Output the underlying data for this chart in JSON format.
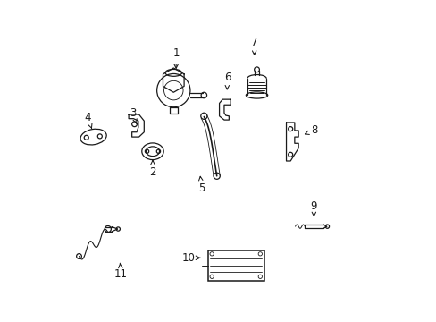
{
  "bg_color": "#ffffff",
  "line_color": "#1a1a1a",
  "figsize": [
    4.89,
    3.6
  ],
  "dpi": 100,
  "label_fs": 8.5,
  "parts_labels": {
    "1": [
      0.368,
      0.835,
      0.368,
      0.778
    ],
    "2": [
      0.295,
      0.465,
      0.295,
      0.505
    ],
    "3": [
      0.232,
      0.65,
      0.245,
      0.615
    ],
    "4": [
      0.092,
      0.635,
      0.105,
      0.6
    ],
    "5": [
      0.448,
      0.415,
      0.443,
      0.455
    ],
    "6": [
      0.528,
      0.76,
      0.527,
      0.72
    ],
    "7": [
      0.612,
      0.87,
      0.612,
      0.82
    ],
    "8": [
      0.8,
      0.595,
      0.76,
      0.58
    ],
    "9": [
      0.798,
      0.358,
      0.798,
      0.325
    ],
    "10": [
      0.406,
      0.198,
      0.445,
      0.198
    ],
    "11": [
      0.196,
      0.148,
      0.192,
      0.19
    ]
  }
}
